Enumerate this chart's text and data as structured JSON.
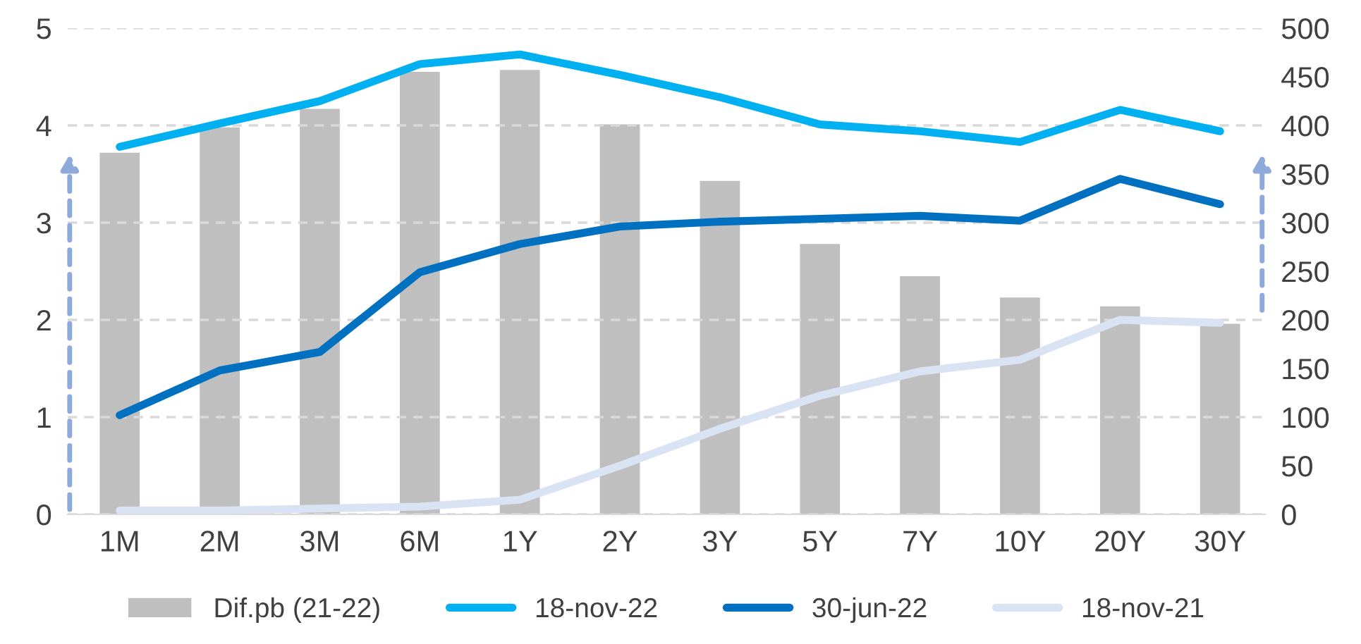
{
  "chart_data": {
    "type": "line",
    "categories": [
      "1M",
      "2M",
      "3M",
      "6M",
      "1Y",
      "2Y",
      "3Y",
      "5Y",
      "7Y",
      "10Y",
      "20Y",
      "30Y"
    ],
    "series": [
      {
        "name": "Dif.pb (21-22)",
        "type": "bar",
        "axis": "y2",
        "color": "#bfbfbf",
        "values": [
          372,
          398,
          417,
          455,
          457,
          401,
          343,
          278,
          245,
          223,
          214,
          196
        ]
      },
      {
        "name": "18-nov-22",
        "color": "#00b0f0",
        "values": [
          3.78,
          4.02,
          4.25,
          4.63,
          4.73,
          4.52,
          4.29,
          4.01,
          3.94,
          3.83,
          4.16,
          3.94
        ]
      },
      {
        "name": "30-jun-22",
        "color": "#0070c0",
        "values": [
          1.02,
          1.48,
          1.67,
          2.49,
          2.78,
          2.96,
          3.01,
          3.04,
          3.07,
          3.02,
          3.45,
          3.19
        ]
      },
      {
        "name": "18-nov-21",
        "color": "#dae3f3",
        "values": [
          0.04,
          0.04,
          0.06,
          0.08,
          0.15,
          0.5,
          0.88,
          1.22,
          1.47,
          1.59,
          2.0,
          1.97
        ]
      }
    ],
    "ylim": [
      0,
      5
    ],
    "yticks": [
      0,
      1,
      2,
      3,
      4,
      5
    ],
    "y2lim": [
      0,
      500
    ],
    "y2ticks": [
      0,
      50,
      100,
      150,
      200,
      250,
      300,
      350,
      400,
      450,
      500
    ],
    "grid": "y",
    "legend": "bottom",
    "marker": "none",
    "line_style": "solid"
  }
}
